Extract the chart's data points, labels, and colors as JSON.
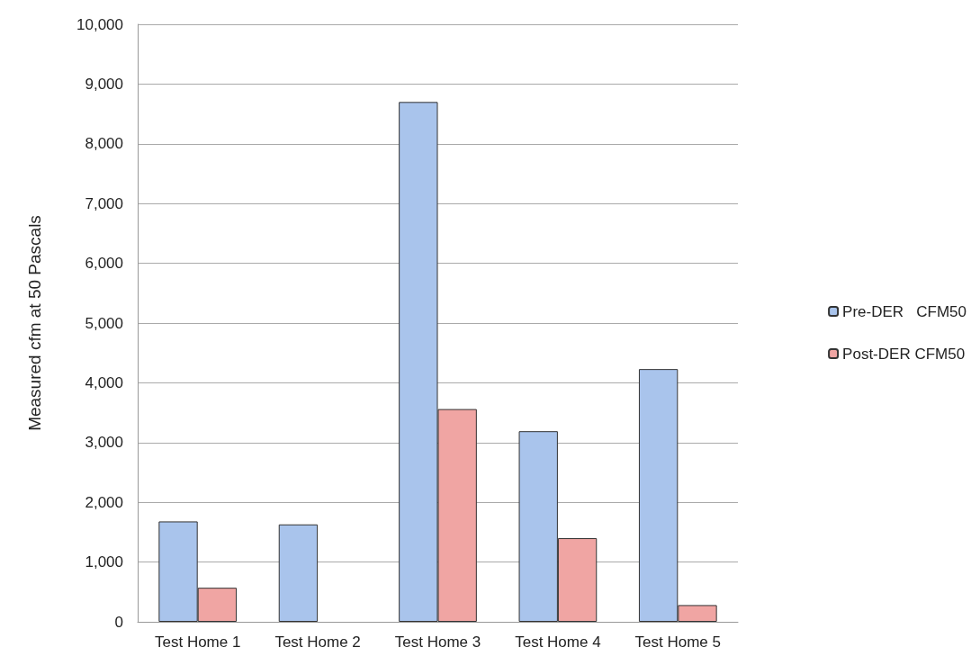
{
  "chart_data": {
    "type": "bar",
    "ylabel": "Measured cfm at 50 Pascals",
    "categories": [
      "Test Home 1",
      "Test Home 2",
      "Test Home 3",
      "Test Home 4",
      "Test Home 5"
    ],
    "series": [
      {
        "name": "Pre-DER   CFM50",
        "color": "#a9c4ec",
        "values": [
          1680,
          1630,
          8700,
          3190,
          4230
        ]
      },
      {
        "name": "Post-DER CFM50",
        "color": "#f0a5a3",
        "values": [
          570,
          null,
          3560,
          1400,
          280
        ]
      }
    ],
    "ylim": [
      0,
      10000
    ],
    "yticks": [
      0,
      {
        "value": 1000,
        "label": "1,000"
      },
      {
        "value": 2000,
        "label": "2,000"
      },
      {
        "value": 3000,
        "label": "3,000"
      },
      {
        "value": 4000,
        "label": "4,000"
      },
      {
        "value": 5000,
        "label": "5,000"
      },
      {
        "value": 6000,
        "label": "6,000"
      },
      {
        "value": 7000,
        "label": "7,000"
      },
      {
        "value": 8000,
        "label": "8,000"
      },
      {
        "value": 9000,
        "label": "9,000"
      },
      {
        "value": 10000,
        "label": "10,000"
      }
    ],
    "grid": "y",
    "legend": "right"
  }
}
